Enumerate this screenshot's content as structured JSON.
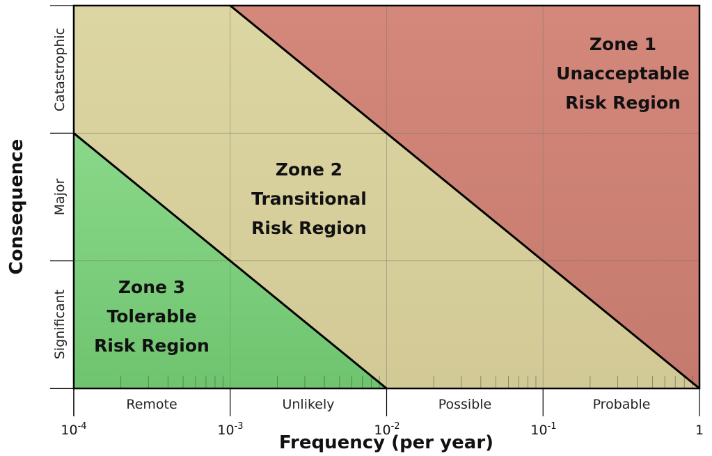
{
  "chart_data": {
    "type": "risk-matrix",
    "xlabel": "Frequency (per year)",
    "ylabel": "Consequence",
    "x_scale": "log",
    "x_range_exponents": [
      -4,
      0
    ],
    "x_ticks": [
      {
        "base": "10",
        "exp": "-4"
      },
      {
        "base": "10",
        "exp": "-3"
      },
      {
        "base": "10",
        "exp": "-2"
      },
      {
        "base": "10",
        "exp": "-1"
      },
      {
        "base": "1",
        "exp": ""
      }
    ],
    "frequency_categories": [
      "Remote",
      "Unlikely",
      "Possible",
      "Probable"
    ],
    "consequence_categories": [
      "Significant",
      "Major",
      "Catastrophic"
    ],
    "zones": [
      {
        "id": "zone1",
        "lines": [
          "Zone 1",
          "Unacceptable",
          "Risk Region"
        ],
        "color": "#cd7f72"
      },
      {
        "id": "zone2",
        "lines": [
          "Zone 2",
          "Transitional",
          "Risk Region"
        ],
        "color": "#d9d39e"
      },
      {
        "id": "zone3",
        "lines": [
          "Zone 3",
          "Tolerable",
          "Risk Region"
        ],
        "color": "#7fcf7f"
      }
    ],
    "boundaries": [
      {
        "name": "zone3-zone2",
        "from": [
          -4,
          2
        ],
        "to": [
          -2,
          0
        ]
      },
      {
        "name": "zone2-zone1",
        "from": [
          -3,
          3
        ],
        "to": [
          0,
          0
        ]
      }
    ]
  }
}
